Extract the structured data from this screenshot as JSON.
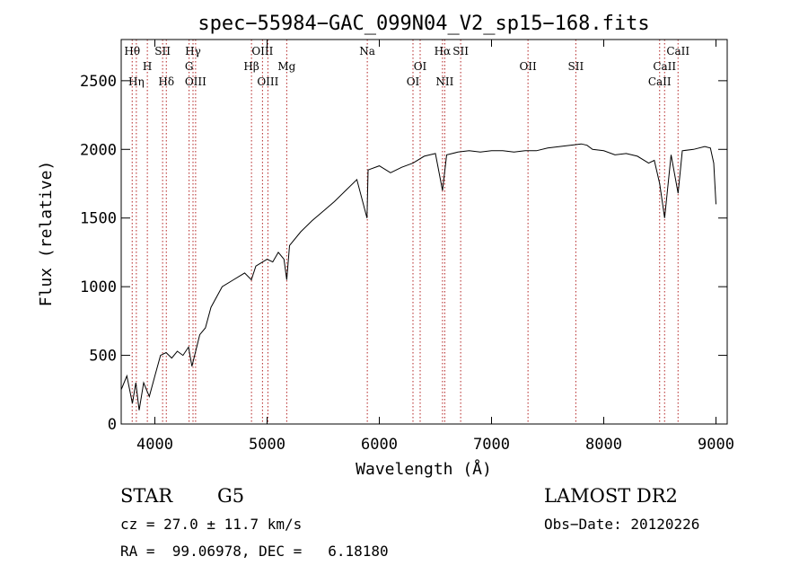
{
  "chart_data": {
    "type": "line",
    "title": "spec−55984−GAC_099N04_V2_sp15−168.fits",
    "xlabel": "Wavelength (Å)",
    "ylabel": "Flux (relative)",
    "xlim": [
      3700,
      9100
    ],
    "ylim": [
      0,
      2800
    ],
    "xticks": [
      4000,
      5000,
      6000,
      7000,
      8000,
      9000
    ],
    "yticks": [
      0,
      500,
      1000,
      1500,
      2000,
      2500
    ],
    "series": [
      {
        "x": [
          3700,
          3750,
          3800,
          3830,
          3860,
          3900,
          3950,
          4000,
          4050,
          4100,
          4150,
          4200,
          4250,
          4300,
          4330,
          4400,
          4450,
          4500,
          4600,
          4700,
          4800,
          4860,
          4900,
          5000,
          5050,
          5100,
          5150,
          5175,
          5200,
          5300,
          5400,
          5500,
          5600,
          5700,
          5800,
          5890,
          5900,
          6000,
          6100,
          6200,
          6300,
          6400,
          6500,
          6563,
          6600,
          6700,
          6800,
          6900,
          7000,
          7100,
          7200,
          7300,
          7400,
          7500,
          7600,
          7700,
          7800,
          7850,
          7900,
          8000,
          8100,
          8200,
          8300,
          8400,
          8450,
          8498,
          8542,
          8600,
          8662,
          8700,
          8800,
          8900,
          8950,
          8980,
          9000
        ],
        "values": [
          250,
          350,
          150,
          300,
          100,
          300,
          200,
          350,
          500,
          520,
          480,
          530,
          500,
          560,
          420,
          650,
          700,
          850,
          1000,
          1050,
          1100,
          1050,
          1150,
          1200,
          1180,
          1250,
          1200,
          1050,
          1300,
          1400,
          1480,
          1550,
          1620,
          1700,
          1780,
          1500,
          1850,
          1880,
          1830,
          1870,
          1900,
          1950,
          1970,
          1700,
          1960,
          1980,
          1990,
          1980,
          1990,
          1990,
          1980,
          1990,
          1990,
          2010,
          2020,
          2030,
          2040,
          2030,
          2000,
          1990,
          1960,
          1970,
          1950,
          1900,
          1920,
          1750,
          1500,
          1960,
          1680,
          1990,
          2000,
          2020,
          2010,
          1900,
          1600
        ]
      }
    ],
    "lines": [
      {
        "name": "Hθ",
        "x": 3798,
        "row": 0
      },
      {
        "name": "Hη",
        "x": 3835,
        "row": 2
      },
      {
        "name": "H",
        "x": 3933,
        "row": 1
      },
      {
        "name": "SII",
        "x": 4069,
        "row": 0
      },
      {
        "name": "Hδ",
        "x": 4102,
        "row": 2
      },
      {
        "name": "Hγ",
        "x": 4340,
        "row": 0
      },
      {
        "name": "G",
        "x": 4305,
        "row": 1
      },
      {
        "name": "OIII",
        "x": 4363,
        "row": 2
      },
      {
        "name": "OIII",
        "x": 4959,
        "row": 0
      },
      {
        "name": "Hβ",
        "x": 4861,
        "row": 1
      },
      {
        "name": "OIII",
        "x": 5007,
        "row": 2
      },
      {
        "name": "Mg",
        "x": 5175,
        "row": 1
      },
      {
        "name": "Na",
        "x": 5893,
        "row": 0
      },
      {
        "name": "OI",
        "x": 6364,
        "row": 1
      },
      {
        "name": "OI",
        "x": 6300,
        "row": 2
      },
      {
        "name": "Hα",
        "x": 6563,
        "row": 0
      },
      {
        "name": "SII",
        "x": 6725,
        "row": 0
      },
      {
        "name": "NII",
        "x": 6583,
        "row": 2
      },
      {
        "name": "OII",
        "x": 7325,
        "row": 1
      },
      {
        "name": "SII",
        "x": 7751,
        "row": 1
      },
      {
        "name": "CaII",
        "x": 8662,
        "row": 0
      },
      {
        "name": "CaII",
        "x": 8542,
        "row": 1
      },
      {
        "name": "CaII",
        "x": 8498,
        "row": 2
      }
    ]
  },
  "footer": {
    "class_label": "STAR",
    "subclass_label": "G5",
    "survey": "LAMOST DR2",
    "redshift": "cz = 27.0 ± 11.7 km/s",
    "obs_date": "Obs−Date: 20120226",
    "coords": "RA =  99.06978, DEC =   6.18180"
  }
}
